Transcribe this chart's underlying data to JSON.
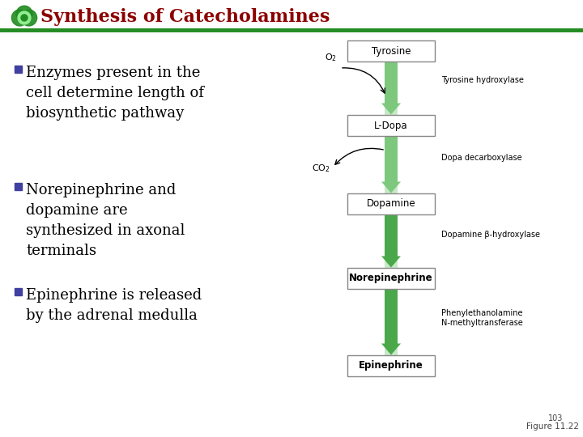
{
  "title": "Synthesis of Catecholamines",
  "title_color": "#8B0000",
  "title_fontsize": 16,
  "header_line_color": "#228B22",
  "bg_color": "#FFFFFF",
  "bullet_color": "#4040A0",
  "bullet_text_color": "#000000",
  "bullet_fontsize": 13,
  "bullets": [
    "Enzymes present in the\ncell determine length of\nbiosynthetic pathway",
    "Norepinephrine and\ndopamine are\nsynthesized in axonal\nterminals",
    "Epinephrine is released\nby the adrenal medulla"
  ],
  "compounds": [
    "Tyrosine",
    "L-Dopa",
    "Dopamine",
    "Norepinephrine",
    "Epinephrine"
  ],
  "compound_bold": [
    false,
    false,
    false,
    true,
    true
  ],
  "enzymes": [
    "Tyrosine hydroxylase",
    "Dopa decarboxylase",
    "Dopamine β-hydroxylase",
    "Phenylethanolamine\nN-methyltransferase"
  ],
  "arrow_color_light": "#B8D8B8",
  "arrow_color_medium": "#7DC87D",
  "arrow_color_dark": "#4AA84A",
  "arrow_inner": "#C8E8C8",
  "box_color": "#FFFFFF",
  "box_edge": "#888888",
  "figure_label": "Figure 11.22",
  "page_num": "103"
}
